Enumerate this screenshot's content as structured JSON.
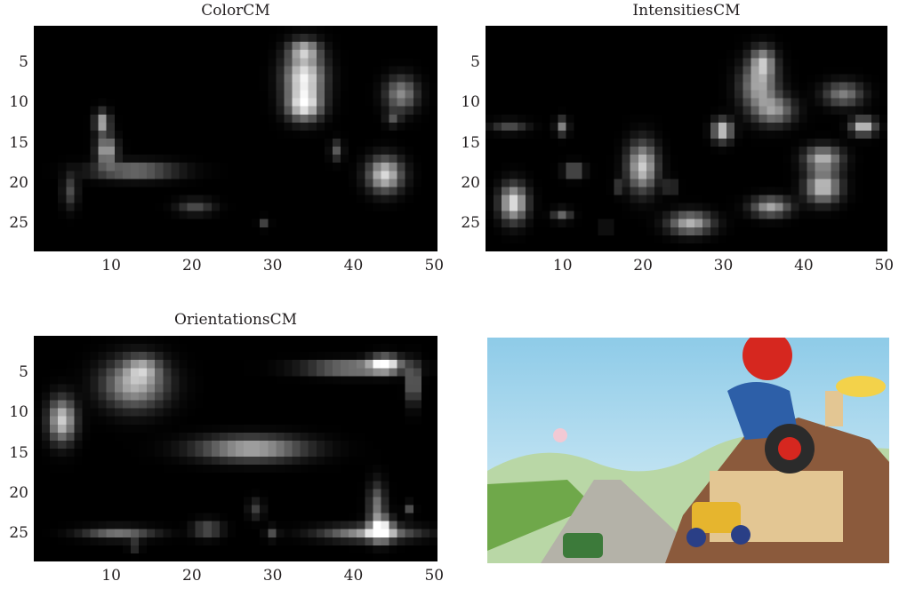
{
  "chart_data": [
    {
      "type": "heatmap",
      "title": "ColorCM",
      "xlabel": "",
      "ylabel": "",
      "xlim": [
        0.5,
        50.5
      ],
      "ylim": [
        0.5,
        28.5
      ],
      "xticks": [
        "10",
        "20",
        "30",
        "40",
        "50"
      ],
      "yticks": [
        "5",
        "10",
        "15",
        "20",
        "25"
      ],
      "colormap": "gray",
      "grid": false,
      "blobs": [
        {
          "x": 34,
          "y": 7,
          "sx": 1.6,
          "sy": 2.2,
          "v": 0.95
        },
        {
          "x": 34,
          "y": 3.5,
          "sx": 1.2,
          "sy": 0.8,
          "v": 0.55
        },
        {
          "x": 34,
          "y": 10.5,
          "sx": 1.4,
          "sy": 1.2,
          "v": 0.75
        },
        {
          "x": 46,
          "y": 9,
          "sx": 1.3,
          "sy": 1.4,
          "v": 0.55
        },
        {
          "x": 45,
          "y": 12,
          "sx": 0.6,
          "sy": 0.6,
          "v": 0.3
        },
        {
          "x": 9,
          "y": 12.5,
          "sx": 0.6,
          "sy": 0.9,
          "v": 0.7
        },
        {
          "x": 9.5,
          "y": 16,
          "sx": 0.8,
          "sy": 1.2,
          "v": 0.7
        },
        {
          "x": 13,
          "y": 18.5,
          "sx": 3.5,
          "sy": 0.7,
          "v": 0.5
        },
        {
          "x": 44,
          "y": 19,
          "sx": 1.4,
          "sy": 1.4,
          "v": 0.85
        },
        {
          "x": 38,
          "y": 16,
          "sx": 0.5,
          "sy": 0.8,
          "v": 0.35
        },
        {
          "x": 5,
          "y": 21,
          "sx": 0.6,
          "sy": 1.4,
          "v": 0.3
        },
        {
          "x": 20.5,
          "y": 23,
          "sx": 1.5,
          "sy": 0.6,
          "v": 0.3
        },
        {
          "x": 29,
          "y": 25,
          "sx": 0.4,
          "sy": 0.4,
          "v": 0.25
        }
      ]
    },
    {
      "type": "heatmap",
      "title": "IntensitiesCM",
      "xlabel": "",
      "ylabel": "",
      "xlim": [
        0.5,
        50.5
      ],
      "ylim": [
        0.5,
        28.5
      ],
      "xticks": [
        "10",
        "20",
        "30",
        "40",
        "50"
      ],
      "yticks": [
        "5",
        "10",
        "15",
        "20",
        "25"
      ],
      "colormap": "gray",
      "grid": false,
      "blobs": [
        {
          "x": 35,
          "y": 5,
          "sx": 1.0,
          "sy": 1.2,
          "v": 0.6
        },
        {
          "x": 34.5,
          "y": 8,
          "sx": 1.5,
          "sy": 2.0,
          "v": 0.65
        },
        {
          "x": 36.5,
          "y": 11,
          "sx": 1.6,
          "sy": 1.2,
          "v": 0.55
        },
        {
          "x": 45,
          "y": 9,
          "sx": 1.6,
          "sy": 1.0,
          "v": 0.5
        },
        {
          "x": 47.5,
          "y": 13,
          "sx": 1.0,
          "sy": 0.7,
          "v": 0.8
        },
        {
          "x": 30,
          "y": 13.5,
          "sx": 0.8,
          "sy": 0.9,
          "v": 0.85
        },
        {
          "x": 20,
          "y": 18,
          "sx": 1.2,
          "sy": 2.0,
          "v": 0.8
        },
        {
          "x": 10,
          "y": 13,
          "sx": 0.5,
          "sy": 0.7,
          "v": 0.5
        },
        {
          "x": 3.5,
          "y": 13,
          "sx": 1.5,
          "sy": 0.5,
          "v": 0.3
        },
        {
          "x": 11.5,
          "y": 18.5,
          "sx": 0.8,
          "sy": 0.6,
          "v": 0.45
        },
        {
          "x": 4,
          "y": 22.5,
          "sx": 1.1,
          "sy": 1.5,
          "v": 0.9
        },
        {
          "x": 10,
          "y": 24,
          "sx": 0.8,
          "sy": 0.5,
          "v": 0.4
        },
        {
          "x": 42.5,
          "y": 17,
          "sx": 1.5,
          "sy": 1.0,
          "v": 0.7
        },
        {
          "x": 42.5,
          "y": 20.5,
          "sx": 1.4,
          "sy": 1.3,
          "v": 0.8
        },
        {
          "x": 36,
          "y": 23,
          "sx": 1.6,
          "sy": 0.8,
          "v": 0.65
        },
        {
          "x": 26,
          "y": 25,
          "sx": 1.8,
          "sy": 0.9,
          "v": 0.7
        },
        {
          "x": 23.5,
          "y": 20.5,
          "sx": 0.5,
          "sy": 0.6,
          "v": 0.3
        },
        {
          "x": 17,
          "y": 20.5,
          "sx": 0.4,
          "sy": 0.6,
          "v": 0.25
        },
        {
          "x": 15.5,
          "y": 25.5,
          "sx": 0.4,
          "sy": 0.5,
          "v": 0.2
        }
      ]
    },
    {
      "type": "heatmap",
      "title": "OrientationsCM",
      "xlabel": "",
      "ylabel": "",
      "xlim": [
        0.5,
        50.5
      ],
      "ylim": [
        0.5,
        28.5
      ],
      "xticks": [
        "10",
        "20",
        "30",
        "40",
        "50"
      ],
      "yticks": [
        "5",
        "10",
        "15",
        "20",
        "25"
      ],
      "colormap": "gray",
      "grid": false,
      "blobs": [
        {
          "x": 13,
          "y": 6.5,
          "sx": 2.6,
          "sy": 2.0,
          "v": 0.7
        },
        {
          "x": 14,
          "y": 4.5,
          "sx": 1.4,
          "sy": 1.0,
          "v": 0.4
        },
        {
          "x": 4,
          "y": 11,
          "sx": 1.1,
          "sy": 1.8,
          "v": 0.8
        },
        {
          "x": 27.5,
          "y": 14.5,
          "sx": 4.5,
          "sy": 1.0,
          "v": 0.7
        },
        {
          "x": 40,
          "y": 4.5,
          "sx": 4.0,
          "sy": 0.6,
          "v": 0.6
        },
        {
          "x": 44,
          "y": 4,
          "sx": 1.3,
          "sy": 0.7,
          "v": 0.9
        },
        {
          "x": 47.5,
          "y": 6.5,
          "sx": 0.5,
          "sy": 1.6,
          "v": 0.55
        },
        {
          "x": 42,
          "y": 25,
          "sx": 4.0,
          "sy": 0.6,
          "v": 0.6
        },
        {
          "x": 43.5,
          "y": 24.5,
          "sx": 1.0,
          "sy": 1.0,
          "v": 0.95
        },
        {
          "x": 43,
          "y": 21.5,
          "sx": 0.7,
          "sy": 1.8,
          "v": 0.45
        },
        {
          "x": 47,
          "y": 22,
          "sx": 0.4,
          "sy": 0.5,
          "v": 0.3
        },
        {
          "x": 11,
          "y": 25,
          "sx": 3.0,
          "sy": 0.5,
          "v": 0.45
        },
        {
          "x": 13,
          "y": 26.5,
          "sx": 0.5,
          "sy": 0.5,
          "v": 0.25
        },
        {
          "x": 22,
          "y": 24.5,
          "sx": 1.2,
          "sy": 0.7,
          "v": 0.35
        },
        {
          "x": 28,
          "y": 22,
          "sx": 0.6,
          "sy": 0.8,
          "v": 0.25
        },
        {
          "x": 30,
          "y": 25,
          "sx": 0.5,
          "sy": 0.5,
          "v": 0.3
        }
      ]
    }
  ],
  "photo": {
    "sky_top": "#8ecbe8",
    "sky_bottom": "#dff1f8",
    "mountain": "#b9d7a6",
    "road": "#b4b2a8",
    "house_roof": "#8b5a3c",
    "house_wall": "#e3c693",
    "hat_red": "#d6271f",
    "overalls_blue": "#2d5fa8",
    "grass": "#6fa84a"
  }
}
